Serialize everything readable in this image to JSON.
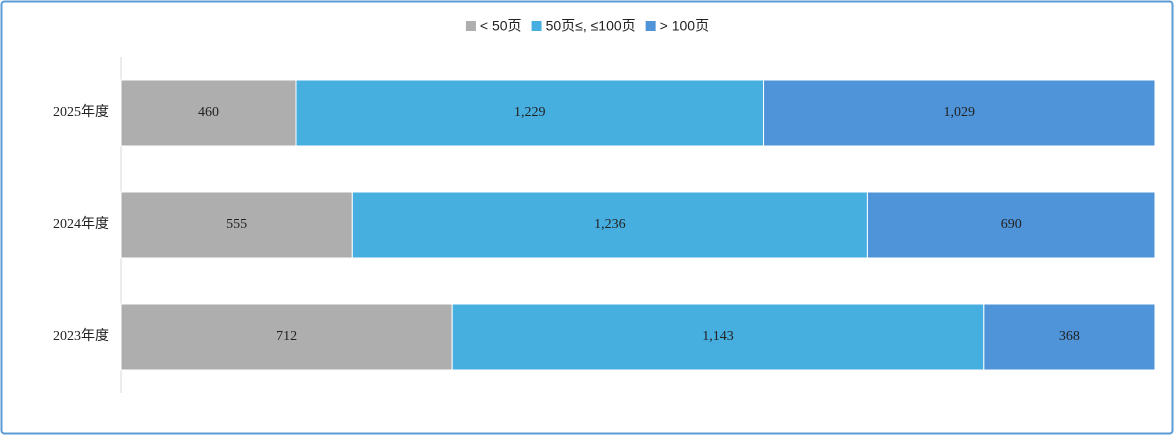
{
  "chart_data": {
    "type": "bar",
    "orientation": "horizontal",
    "stacking": "percent",
    "categories": [
      "2025年度",
      "2024年度",
      "2023年度"
    ],
    "series": [
      {
        "name": "< 50页",
        "color": "#aeaeae",
        "values": [
          460,
          555,
          712
        ],
        "value_labels": [
          "460",
          "555",
          "712"
        ]
      },
      {
        "name": "50页≤, ≤100页",
        "color": "#47afe0",
        "values": [
          1229,
          1236,
          1143
        ],
        "value_labels": [
          "1,229",
          "1,236",
          "1,143"
        ]
      },
      {
        "name": "> 100页",
        "color": "#4f94d9",
        "values": [
          1029,
          690,
          368
        ],
        "value_labels": [
          "1,029",
          "690",
          "368"
        ]
      }
    ],
    "legend": "top"
  }
}
